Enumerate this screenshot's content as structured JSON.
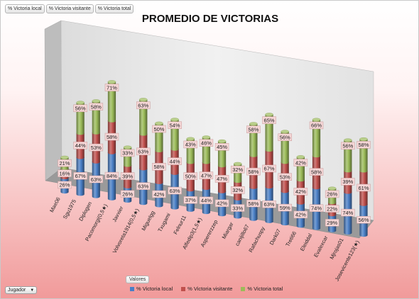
{
  "field_buttons": [
    "% Victoria local",
    "% Victoria visitante",
    "% Victoria total"
  ],
  "valores_label": "Valores",
  "filter": {
    "label": "Jugador",
    "caret": "▼",
    "caret_icon": "chevron-down-icon"
  },
  "colors": {
    "local": "#4a7fc6",
    "visitante": "#c0504d",
    "total": "#9bbb59"
  },
  "chart_data": {
    "type": "bar",
    "subtype": "stacked-3d-cylinder",
    "title": "PROMEDIO DE VICTORIAS",
    "categories": [
      "Mae06",
      "Sgu1975",
      "Diplogen",
      "Pacomorgi(0,5★)",
      "Javxier",
      "Volvoreta1914(0,5★)",
      "Miguelgg",
      "Txugami",
      "Felnur11",
      "Alfedip3(1,5★)",
      "Aspererzzep",
      "Miargar",
      "canijillo67",
      "Rafachuspy",
      "Dark07",
      "Treti66",
      "Eleiddal",
      "Evalexcar",
      "Mjrojas01",
      "Josevicente123(★)"
    ],
    "series": [
      {
        "name": "% Victoria local",
        "values": [
          26,
          67,
          63,
          84,
          26,
          63,
          42,
          63,
          37,
          44,
          42,
          33,
          58,
          63,
          59,
          42,
          74,
          29,
          74,
          56
        ]
      },
      {
        "name": "% Victoria visitante",
        "values": [
          16,
          44,
          53,
          58,
          39,
          63,
          58,
          44,
          50,
          47,
          47,
          32,
          58,
          67,
          53,
          42,
          58,
          22,
          39,
          61
        ]
      },
      {
        "name": "% Victoria total",
        "values": [
          21,
          56,
          58,
          71,
          33,
          63,
          50,
          54,
          43,
          46,
          45,
          32,
          58,
          65,
          56,
          42,
          66,
          26,
          56,
          58
        ]
      }
    ],
    "labels": [
      [
        "26%",
        "16%",
        "21%"
      ],
      [
        "67%",
        "44%",
        "56%"
      ],
      [
        "63%",
        "53%",
        "58%"
      ],
      [
        "84%",
        "58%",
        "71%"
      ],
      [
        "26%",
        "39%",
        "33%"
      ],
      [
        "63%",
        "63%",
        "63%"
      ],
      [
        "42%",
        "58%",
        "50%"
      ],
      [
        "63%",
        "44%",
        "54%"
      ],
      [
        "37%",
        "50%",
        "43%"
      ],
      [
        "44%",
        "47%",
        "46%"
      ],
      [
        "42%",
        "47%",
        "45%"
      ],
      [
        "33%",
        "32%",
        "32%"
      ],
      [
        "58%",
        "58%",
        "58%"
      ],
      [
        "63%",
        "67%",
        "65%"
      ],
      [
        "59%",
        "53%",
        "56%"
      ],
      [
        "42%",
        "42%",
        "42%"
      ],
      [
        "74%",
        "58%",
        "66%"
      ],
      [
        "29%",
        "22%",
        "26%"
      ],
      [
        "74%",
        "39%",
        "56%"
      ],
      [
        "56%",
        "61%",
        "58%"
      ]
    ],
    "legend_position": "bottom",
    "grid": false
  }
}
